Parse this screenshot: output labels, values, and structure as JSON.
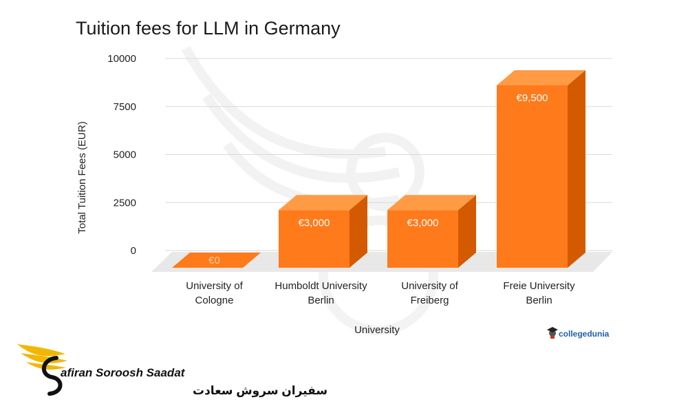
{
  "chart_data": {
    "type": "bar",
    "title": "Tuition fees for LLM in Germany",
    "xlabel": "University",
    "ylabel": "Total Tuition Fees (EUR)",
    "ylim": [
      0,
      10000
    ],
    "yticks": [
      0,
      2500,
      5000,
      7500,
      10000
    ],
    "ytick_labels": [
      "0",
      "2500",
      "5000",
      "7500",
      "10000"
    ],
    "grid": true,
    "categories": [
      [
        "University of",
        "Cologne"
      ],
      [
        "Humboldt University",
        "Berlin"
      ],
      [
        "University of",
        "Freiberg"
      ],
      [
        "Freie University",
        "Berlin"
      ]
    ],
    "values": [
      0,
      3000,
      3000,
      9500
    ],
    "data_labels": [
      "€0",
      "€3,000",
      "€3,000",
      "€9,500"
    ],
    "bar_color": "#ff7a1a",
    "bar_side_color": "#d45a00",
    "bar_top_color": "#ff9a45"
  },
  "credit": {
    "text": "collegedunia",
    "icon": "graduate-icon"
  },
  "brand": {
    "name_en": "afiran Soroosh Saadat",
    "name_fa": "سفیران سروش سعادت",
    "logo_icon": "winged-s-logo-icon",
    "logo_color": "#f2b705"
  }
}
